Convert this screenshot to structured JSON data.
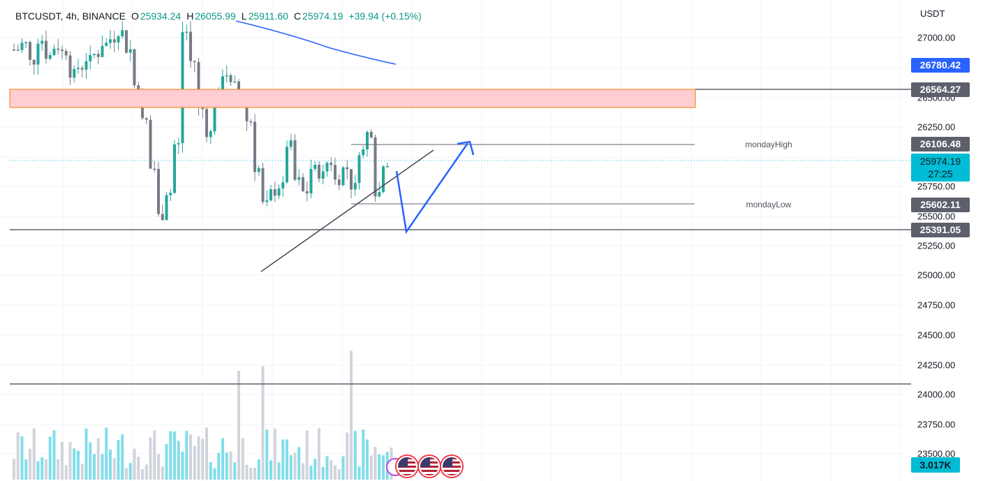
{
  "legend": {
    "symbol": "BTCUSDT, 4h, BINANCE",
    "open_label": "O",
    "open": "25934.24",
    "high_label": "H",
    "high": "26055.99",
    "low_label": "L",
    "low": "25911.60",
    "close_label": "C",
    "close": "25974.19",
    "change": "+39.94 (+0.15%)"
  },
  "price_axis": {
    "unit": "USDT",
    "ticks": [
      "27000.00",
      "26500.00",
      "26250.00",
      "25750.00",
      "25500.00",
      "25250.00",
      "25000.00",
      "24750.00",
      "24500.00",
      "24250.00",
      "24000.00",
      "23750.00",
      "23500.00"
    ]
  },
  "price_tags": {
    "ma_value": "26780.42",
    "resistance": "26564.27",
    "monday_high": "26106.48",
    "current_price": "25974.19",
    "countdown": "27:25",
    "monday_low": "25602.11",
    "support": "25391.05"
  },
  "lines": {
    "monday_high_label": "mondayHigh",
    "monday_low_label": "mondayLow"
  },
  "volume": {
    "last_value": "3.017K"
  },
  "colors": {
    "up": "#26a69a",
    "down": "#787b86",
    "volume_up": "#80deea",
    "volume_down": "#d1d4dc",
    "ma_line": "#2962ff",
    "zone_fill": "#ffcdd2",
    "zone_border": "#f57c00",
    "arrow": "#2962ff",
    "tag_blue": "#2962ff",
    "tag_gray": "#5d606b",
    "tag_current": "#00bcd4"
  },
  "icons": {
    "event_flags": [
      "us-flag-icon",
      "us-flag-icon",
      "us-flag-icon"
    ],
    "event_marker": "lightning-event-icon"
  }
}
